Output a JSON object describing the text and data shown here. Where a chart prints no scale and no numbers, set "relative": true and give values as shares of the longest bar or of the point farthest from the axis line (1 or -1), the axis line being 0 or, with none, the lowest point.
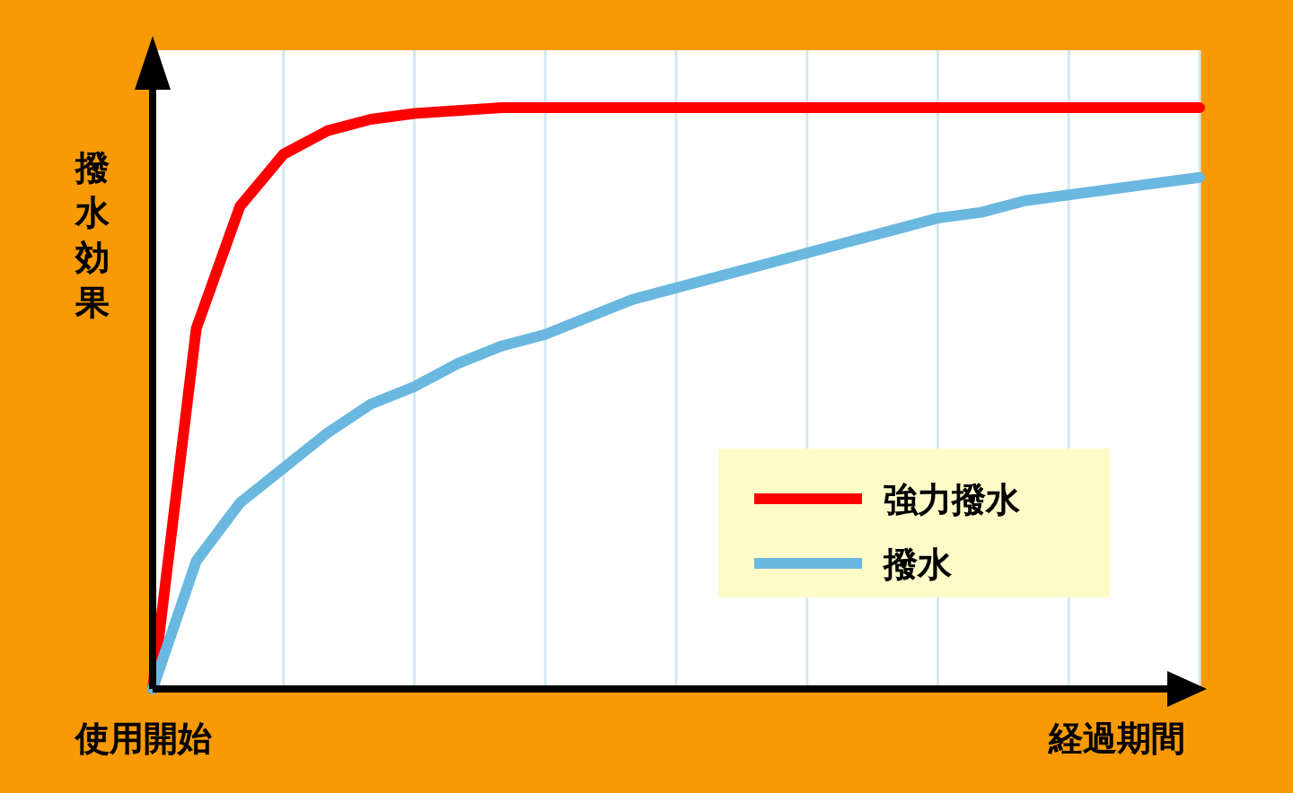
{
  "chart_data": {
    "type": "line",
    "relative": true,
    "ylabel": "撥水効果",
    "xlabel": "経過期間",
    "annotations": [
      "使用開始"
    ],
    "categories": [
      null,
      null,
      null,
      null,
      null,
      null,
      null,
      null,
      null,
      null,
      null,
      null,
      null,
      null,
      null,
      null,
      null,
      null,
      null,
      null,
      null,
      null,
      null,
      null,
      null
    ],
    "grid": "x",
    "legend": "bottom right",
    "marker": "none",
    "line_style": "solid",
    "series": [
      {
        "name": "強力撥水",
        "color": "#ff0000",
        "values": [
          0,
          0.62,
          0.83,
          0.92,
          0.96,
          0.98,
          0.99,
          0.995,
          1,
          1,
          1,
          1,
          1,
          1,
          1,
          1,
          1,
          1,
          1,
          1,
          1,
          1,
          1,
          1,
          1
        ]
      },
      {
        "name": "撥水",
        "color": "#6ab8e0",
        "values": [
          0,
          0.22,
          0.32,
          0.38,
          0.44,
          0.49,
          0.52,
          0.56,
          0.59,
          0.61,
          0.64,
          0.67,
          0.69,
          0.71,
          0.73,
          0.75,
          0.77,
          0.79,
          0.81,
          0.82,
          0.84,
          0.85,
          0.86,
          0.87,
          0.88
        ]
      }
    ]
  }
}
